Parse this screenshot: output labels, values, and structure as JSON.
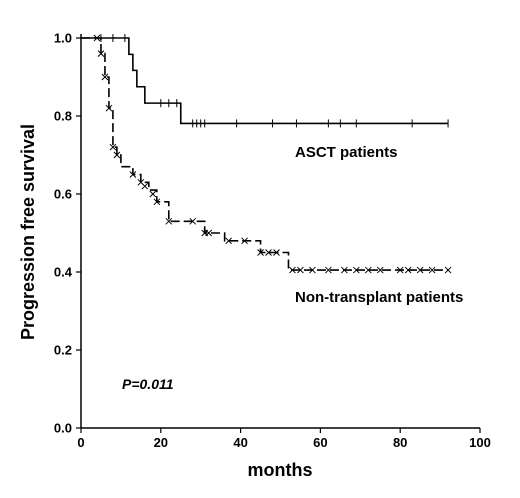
{
  "chart_data": {
    "type": "line",
    "subtype": "kaplan-meier",
    "title": "",
    "xlabel": "months",
    "ylabel": "Progression free survival",
    "xlim": [
      0,
      100
    ],
    "ylim": [
      0.0,
      1.0
    ],
    "xticks": [
      "0",
      "20",
      "40",
      "60",
      "80",
      "100"
    ],
    "yticks": [
      "0.0",
      "0.2",
      "0.4",
      "0.6",
      "0.8",
      "1.0"
    ],
    "grid": false,
    "annotations": {
      "p_value": "P=0.011"
    },
    "series": [
      {
        "name": "ASCT patients",
        "line_style": "solid",
        "censor_marker": "plus",
        "steps": [
          [
            0,
            1.0
          ],
          [
            12,
            0.958
          ],
          [
            13,
            0.917
          ],
          [
            14,
            0.875
          ],
          [
            16,
            0.833
          ],
          [
            25,
            0.781
          ],
          [
            92,
            0.781
          ]
        ],
        "censored": [
          [
            5,
            1.0
          ],
          [
            8,
            1.0
          ],
          [
            11,
            1.0
          ],
          [
            20,
            0.833
          ],
          [
            22,
            0.833
          ],
          [
            24,
            0.833
          ],
          [
            28,
            0.781
          ],
          [
            29,
            0.781
          ],
          [
            30,
            0.781
          ],
          [
            31,
            0.781
          ],
          [
            39,
            0.781
          ],
          [
            48,
            0.781
          ],
          [
            54,
            0.781
          ],
          [
            62,
            0.781
          ],
          [
            65,
            0.781
          ],
          [
            69,
            0.781
          ],
          [
            83,
            0.781
          ],
          [
            92,
            0.781
          ]
        ]
      },
      {
        "name": "Non-transplant patients",
        "line_style": "dashed",
        "censor_marker": "x",
        "steps": [
          [
            0,
            1.0
          ],
          [
            5,
            0.96
          ],
          [
            6,
            0.9
          ],
          [
            7,
            0.82
          ],
          [
            8,
            0.72
          ],
          [
            9,
            0.7
          ],
          [
            10,
            0.67
          ],
          [
            13,
            0.65
          ],
          [
            15,
            0.63
          ],
          [
            17,
            0.61
          ],
          [
            19,
            0.58
          ],
          [
            22,
            0.53
          ],
          [
            31,
            0.5
          ],
          [
            36,
            0.48
          ],
          [
            45,
            0.45
          ],
          [
            52,
            0.405
          ],
          [
            92,
            0.405
          ]
        ],
        "censored": [
          [
            4,
            1.0
          ],
          [
            5,
            0.96
          ],
          [
            6,
            0.9
          ],
          [
            7,
            0.82
          ],
          [
            8,
            0.72
          ],
          [
            9,
            0.7
          ],
          [
            13,
            0.65
          ],
          [
            15,
            0.63
          ],
          [
            16,
            0.62
          ],
          [
            18,
            0.6
          ],
          [
            19,
            0.58
          ],
          [
            22,
            0.53
          ],
          [
            28,
            0.53
          ],
          [
            31,
            0.5
          ],
          [
            32,
            0.5
          ],
          [
            37,
            0.48
          ],
          [
            41,
            0.48
          ],
          [
            45,
            0.45
          ],
          [
            47,
            0.45
          ],
          [
            49,
            0.45
          ],
          [
            53,
            0.405
          ],
          [
            55,
            0.405
          ],
          [
            58,
            0.405
          ],
          [
            62,
            0.405
          ],
          [
            66,
            0.405
          ],
          [
            69,
            0.405
          ],
          [
            72,
            0.405
          ],
          [
            75,
            0.405
          ],
          [
            80,
            0.405
          ],
          [
            82,
            0.405
          ],
          [
            85,
            0.405
          ],
          [
            88,
            0.405
          ],
          [
            92,
            0.405
          ]
        ]
      }
    ]
  }
}
